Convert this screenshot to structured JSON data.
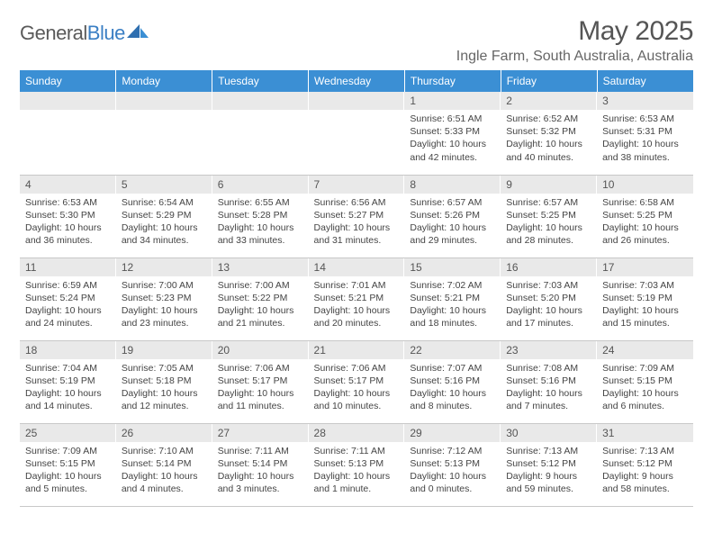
{
  "brand": {
    "name_part1": "General",
    "name_part2": "Blue"
  },
  "colors": {
    "header_bg": "#3b8fd4",
    "header_text": "#ffffff",
    "daynum_bg": "#e9e9e9",
    "body_text": "#444444",
    "title_text": "#555555",
    "logo_gray": "#5a5a5a",
    "logo_blue": "#3b7fc4"
  },
  "title": "May 2025",
  "location": "Ingle Farm, South Australia, Australia",
  "weekdays": [
    "Sunday",
    "Monday",
    "Tuesday",
    "Wednesday",
    "Thursday",
    "Friday",
    "Saturday"
  ],
  "weeks": [
    [
      null,
      null,
      null,
      null,
      {
        "n": "1",
        "sr": "Sunrise: 6:51 AM",
        "ss": "Sunset: 5:33 PM",
        "dl": "Daylight: 10 hours and 42 minutes."
      },
      {
        "n": "2",
        "sr": "Sunrise: 6:52 AM",
        "ss": "Sunset: 5:32 PM",
        "dl": "Daylight: 10 hours and 40 minutes."
      },
      {
        "n": "3",
        "sr": "Sunrise: 6:53 AM",
        "ss": "Sunset: 5:31 PM",
        "dl": "Daylight: 10 hours and 38 minutes."
      }
    ],
    [
      {
        "n": "4",
        "sr": "Sunrise: 6:53 AM",
        "ss": "Sunset: 5:30 PM",
        "dl": "Daylight: 10 hours and 36 minutes."
      },
      {
        "n": "5",
        "sr": "Sunrise: 6:54 AM",
        "ss": "Sunset: 5:29 PM",
        "dl": "Daylight: 10 hours and 34 minutes."
      },
      {
        "n": "6",
        "sr": "Sunrise: 6:55 AM",
        "ss": "Sunset: 5:28 PM",
        "dl": "Daylight: 10 hours and 33 minutes."
      },
      {
        "n": "7",
        "sr": "Sunrise: 6:56 AM",
        "ss": "Sunset: 5:27 PM",
        "dl": "Daylight: 10 hours and 31 minutes."
      },
      {
        "n": "8",
        "sr": "Sunrise: 6:57 AM",
        "ss": "Sunset: 5:26 PM",
        "dl": "Daylight: 10 hours and 29 minutes."
      },
      {
        "n": "9",
        "sr": "Sunrise: 6:57 AM",
        "ss": "Sunset: 5:25 PM",
        "dl": "Daylight: 10 hours and 28 minutes."
      },
      {
        "n": "10",
        "sr": "Sunrise: 6:58 AM",
        "ss": "Sunset: 5:25 PM",
        "dl": "Daylight: 10 hours and 26 minutes."
      }
    ],
    [
      {
        "n": "11",
        "sr": "Sunrise: 6:59 AM",
        "ss": "Sunset: 5:24 PM",
        "dl": "Daylight: 10 hours and 24 minutes."
      },
      {
        "n": "12",
        "sr": "Sunrise: 7:00 AM",
        "ss": "Sunset: 5:23 PM",
        "dl": "Daylight: 10 hours and 23 minutes."
      },
      {
        "n": "13",
        "sr": "Sunrise: 7:00 AM",
        "ss": "Sunset: 5:22 PM",
        "dl": "Daylight: 10 hours and 21 minutes."
      },
      {
        "n": "14",
        "sr": "Sunrise: 7:01 AM",
        "ss": "Sunset: 5:21 PM",
        "dl": "Daylight: 10 hours and 20 minutes."
      },
      {
        "n": "15",
        "sr": "Sunrise: 7:02 AM",
        "ss": "Sunset: 5:21 PM",
        "dl": "Daylight: 10 hours and 18 minutes."
      },
      {
        "n": "16",
        "sr": "Sunrise: 7:03 AM",
        "ss": "Sunset: 5:20 PM",
        "dl": "Daylight: 10 hours and 17 minutes."
      },
      {
        "n": "17",
        "sr": "Sunrise: 7:03 AM",
        "ss": "Sunset: 5:19 PM",
        "dl": "Daylight: 10 hours and 15 minutes."
      }
    ],
    [
      {
        "n": "18",
        "sr": "Sunrise: 7:04 AM",
        "ss": "Sunset: 5:19 PM",
        "dl": "Daylight: 10 hours and 14 minutes."
      },
      {
        "n": "19",
        "sr": "Sunrise: 7:05 AM",
        "ss": "Sunset: 5:18 PM",
        "dl": "Daylight: 10 hours and 12 minutes."
      },
      {
        "n": "20",
        "sr": "Sunrise: 7:06 AM",
        "ss": "Sunset: 5:17 PM",
        "dl": "Daylight: 10 hours and 11 minutes."
      },
      {
        "n": "21",
        "sr": "Sunrise: 7:06 AM",
        "ss": "Sunset: 5:17 PM",
        "dl": "Daylight: 10 hours and 10 minutes."
      },
      {
        "n": "22",
        "sr": "Sunrise: 7:07 AM",
        "ss": "Sunset: 5:16 PM",
        "dl": "Daylight: 10 hours and 8 minutes."
      },
      {
        "n": "23",
        "sr": "Sunrise: 7:08 AM",
        "ss": "Sunset: 5:16 PM",
        "dl": "Daylight: 10 hours and 7 minutes."
      },
      {
        "n": "24",
        "sr": "Sunrise: 7:09 AM",
        "ss": "Sunset: 5:15 PM",
        "dl": "Daylight: 10 hours and 6 minutes."
      }
    ],
    [
      {
        "n": "25",
        "sr": "Sunrise: 7:09 AM",
        "ss": "Sunset: 5:15 PM",
        "dl": "Daylight: 10 hours and 5 minutes."
      },
      {
        "n": "26",
        "sr": "Sunrise: 7:10 AM",
        "ss": "Sunset: 5:14 PM",
        "dl": "Daylight: 10 hours and 4 minutes."
      },
      {
        "n": "27",
        "sr": "Sunrise: 7:11 AM",
        "ss": "Sunset: 5:14 PM",
        "dl": "Daylight: 10 hours and 3 minutes."
      },
      {
        "n": "28",
        "sr": "Sunrise: 7:11 AM",
        "ss": "Sunset: 5:13 PM",
        "dl": "Daylight: 10 hours and 1 minute."
      },
      {
        "n": "29",
        "sr": "Sunrise: 7:12 AM",
        "ss": "Sunset: 5:13 PM",
        "dl": "Daylight: 10 hours and 0 minutes."
      },
      {
        "n": "30",
        "sr": "Sunrise: 7:13 AM",
        "ss": "Sunset: 5:12 PM",
        "dl": "Daylight: 9 hours and 59 minutes."
      },
      {
        "n": "31",
        "sr": "Sunrise: 7:13 AM",
        "ss": "Sunset: 5:12 PM",
        "dl": "Daylight: 9 hours and 58 minutes."
      }
    ]
  ]
}
